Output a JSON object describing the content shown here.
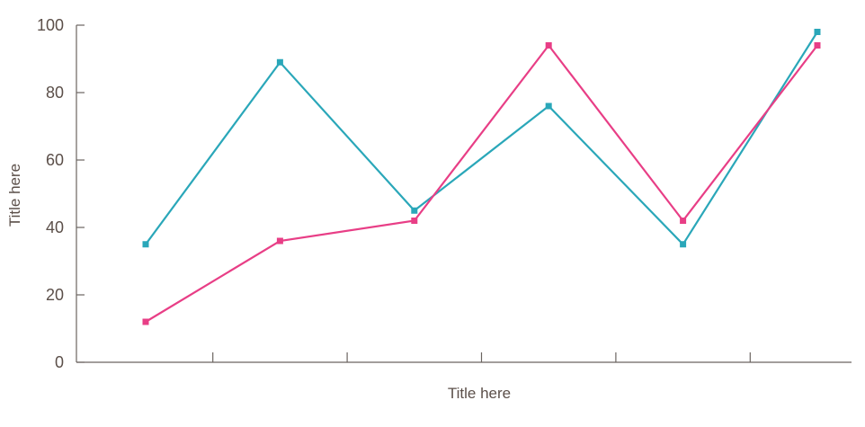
{
  "chart_data": {
    "type": "line",
    "xlabel": "Title here",
    "ylabel": "Title here",
    "ylim": [
      0,
      100
    ],
    "yticks": [
      "0",
      "20",
      "40",
      "60",
      "80",
      "100"
    ],
    "x": [
      1,
      2,
      3,
      4,
      5,
      6
    ],
    "grid": false,
    "legend": "none",
    "series": [
      {
        "color": "#2aa7b9",
        "values": [
          35,
          89,
          45,
          76,
          35,
          98
        ]
      },
      {
        "color": "#e83e86",
        "values": [
          12,
          36,
          42,
          94,
          42,
          94
        ]
      }
    ]
  }
}
